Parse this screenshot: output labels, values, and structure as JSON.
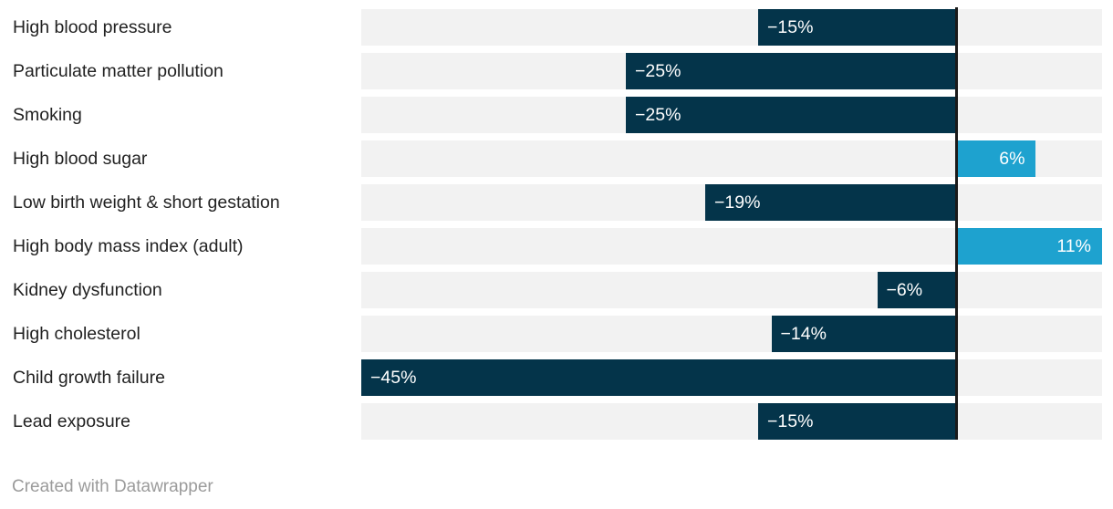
{
  "chart_data": {
    "type": "bar",
    "orientation": "horizontal",
    "title": "",
    "xlabel": "",
    "ylabel": "",
    "grid": "off",
    "legend": "none",
    "categories": [
      "High blood pressure",
      "Particulate matter pollution",
      "Smoking",
      "High blood sugar",
      "Low birth weight & short gestation",
      "High body mass index (adult)",
      "Kidney dysfunction",
      "High cholesterol",
      "Child growth failure",
      "Lead exposure"
    ],
    "values": [
      -15,
      -25,
      -25,
      6,
      -19,
      11,
      -6,
      -14,
      -45,
      -15
    ],
    "value_labels": [
      "−15%",
      "−25%",
      "−25%",
      "6%",
      "−19%",
      "11%",
      "−6%",
      "−14%",
      "−45%",
      "−15%"
    ],
    "axis": {
      "min": -45,
      "max": 11,
      "zero_line": true
    },
    "colors": {
      "negative_bar": "#04344a",
      "positive_bar": "#1ea2cf",
      "track": "#f2f2f2",
      "zero_line": "#1a1a1a",
      "category_text": "#222222",
      "value_text": "#ffffff"
    }
  },
  "footer": {
    "attribution": "Created with Datawrapper"
  }
}
